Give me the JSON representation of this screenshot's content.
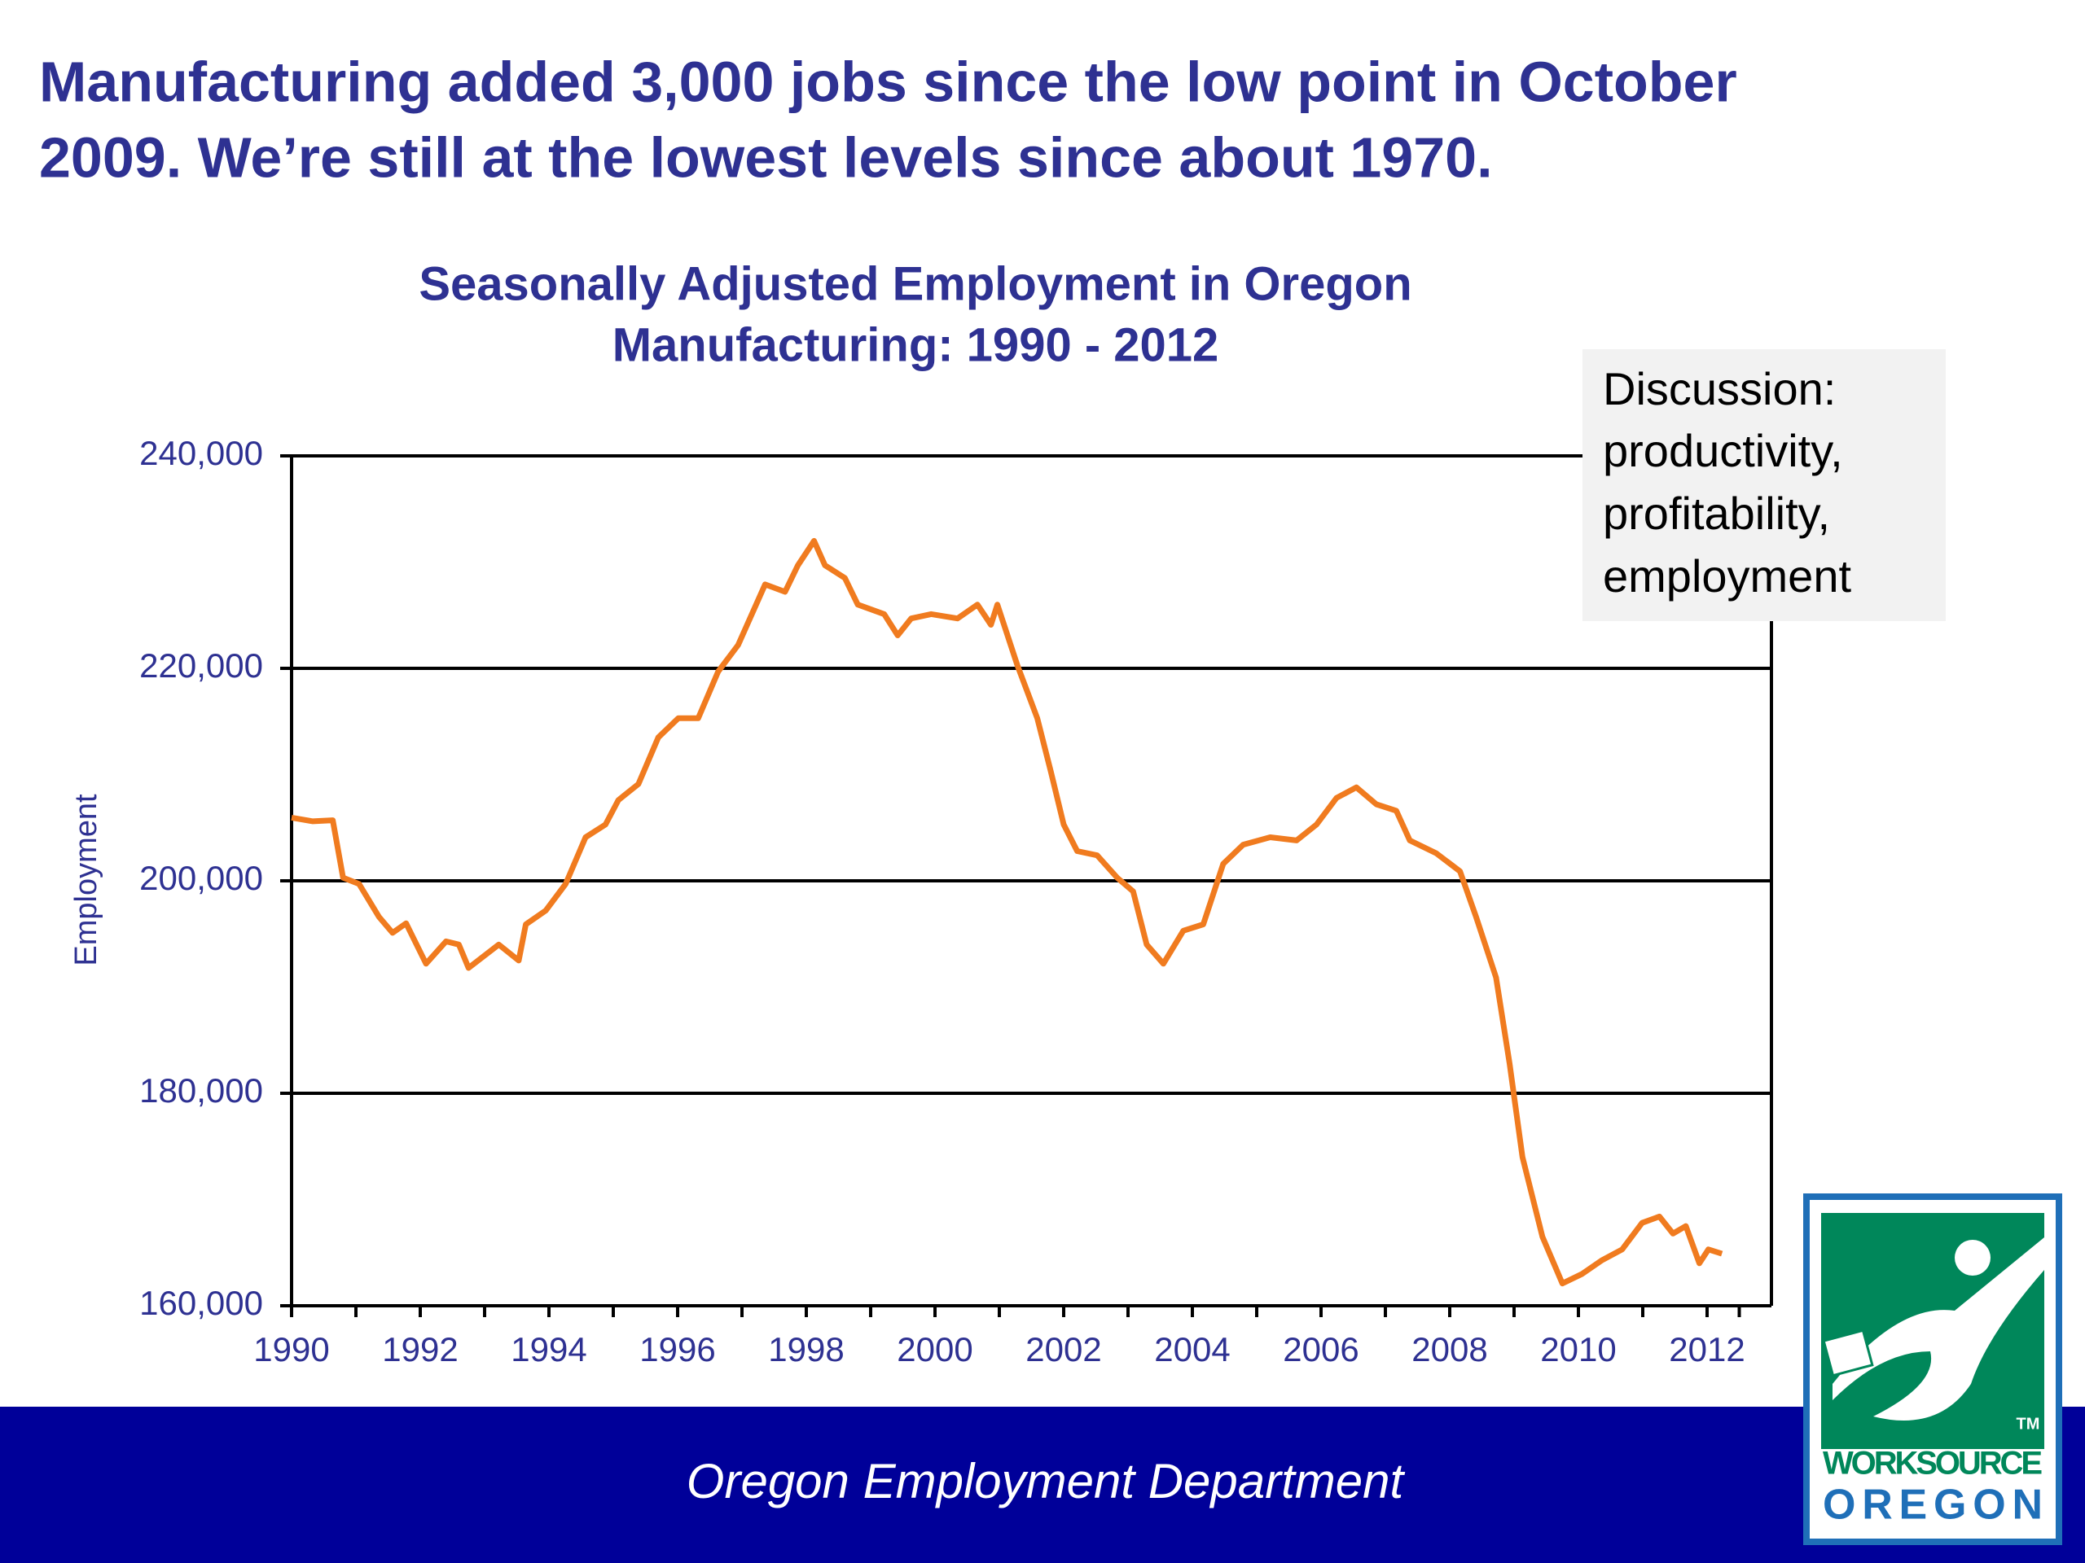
{
  "headline": [
    "Manufacturing added 3,000 jobs since the low point in October",
    "2009. We’re still at the lowest levels since about 1970."
  ],
  "chart_data": {
    "type": "line",
    "title": [
      "Seasonally Adjusted Employment in Oregon",
      "Manufacturing:  1990 - 2012"
    ],
    "y_label": "Employment",
    "annotation": [
      "Discussion:",
      "productivity,",
      "profitability,",
      "employment"
    ],
    "x": [
      1990.0,
      1990.33,
      1990.64,
      1990.8,
      1991.05,
      1991.36,
      1991.57,
      1991.78,
      1992.09,
      1992.4,
      1992.6,
      1992.75,
      1993.22,
      1993.53,
      1993.64,
      1993.95,
      1994.26,
      1994.57,
      1994.88,
      1995.08,
      1995.39,
      1995.7,
      1996.01,
      1996.32,
      1996.63,
      1996.94,
      1997.36,
      1997.67,
      1997.87,
      1998.12,
      1998.29,
      1998.6,
      1998.8,
      1999.21,
      1999.42,
      1999.63,
      1999.94,
      2000.35,
      2000.66,
      2000.87,
      2000.97,
      2001.28,
      2001.59,
      2001.8,
      2002.0,
      2002.21,
      2002.52,
      2002.83,
      2003.08,
      2003.29,
      2003.55,
      2003.86,
      2004.17,
      2004.48,
      2004.79,
      2005.21,
      2005.62,
      2005.93,
      2006.24,
      2006.55,
      2006.86,
      2007.17,
      2007.38,
      2007.79,
      2008.16,
      2008.41,
      2008.72,
      2008.93,
      2009.13,
      2009.44,
      2009.75,
      2010.06,
      2010.37,
      2010.68,
      2010.99,
      2011.26,
      2011.47,
      2011.67,
      2011.88,
      2012.02,
      2012.23
    ],
    "series": [
      {
        "color": "#f07b1f",
        "values": [
          205950,
          205600,
          205700,
          200300,
          199700,
          196600,
          195100,
          196000,
          192200,
          194300,
          194000,
          191800,
          194000,
          192500,
          195900,
          197200,
          199700,
          204100,
          205300,
          207600,
          209100,
          213500,
          215300,
          215300,
          219700,
          222200,
          227900,
          227200,
          229700,
          232000,
          229700,
          228500,
          226000,
          225100,
          223100,
          224700,
          225100,
          224700,
          226000,
          224100,
          226000,
          220300,
          215300,
          210300,
          205300,
          202800,
          202400,
          200300,
          199000,
          194000,
          192200,
          195300,
          195900,
          201600,
          203400,
          204100,
          203800,
          205300,
          207800,
          208800,
          207200,
          206600,
          203800,
          202600,
          200900,
          196600,
          190900,
          182800,
          174000,
          166500,
          162100,
          163000,
          164300,
          165300,
          167800,
          168400,
          166800,
          167500,
          164000,
          165300,
          164900
        ]
      }
    ],
    "xlim": [
      1990,
      2013
    ],
    "xticks": [
      1990,
      1992,
      1994,
      1996,
      1998,
      2000,
      2002,
      2004,
      2006,
      2008,
      2010,
      2012
    ],
    "ylim": [
      160000,
      240000
    ],
    "yticks": [
      {
        "value": 160000,
        "label": "160,000"
      },
      {
        "value": 180000,
        "label": "180,000"
      },
      {
        "value": 200000,
        "label": "200,000"
      },
      {
        "value": 220000,
        "label": "220,000"
      },
      {
        "value": 240000,
        "label": "240,000"
      }
    ],
    "grid": true
  },
  "footer": "Oregon Employment Department",
  "logo": {
    "tm": "TM",
    "line1": "WORKSOURCE",
    "line2": "OREGON"
  }
}
